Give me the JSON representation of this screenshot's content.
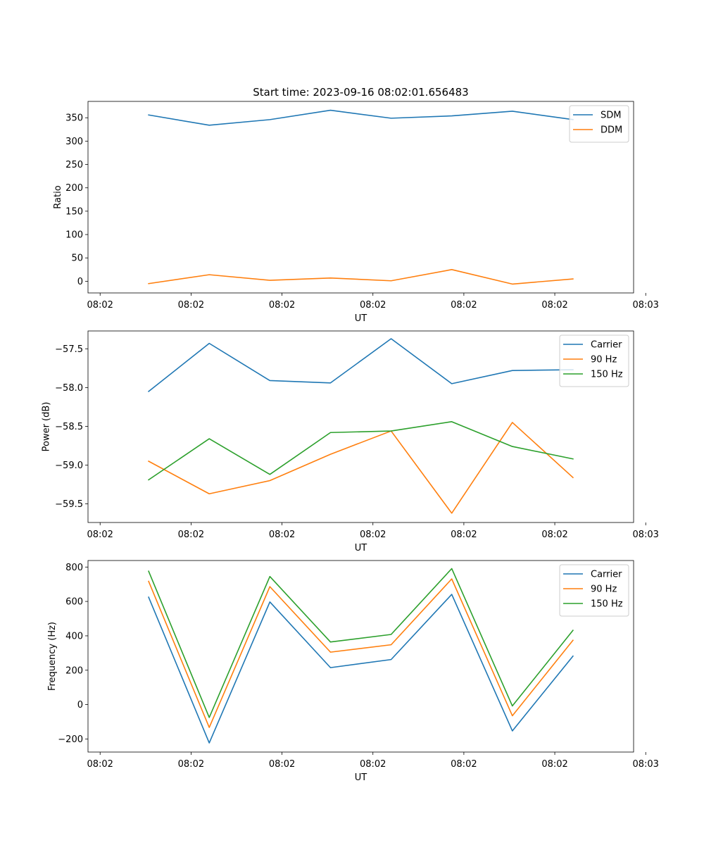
{
  "chart_data": [
    {
      "type": "line",
      "title": "Start time: 2023-09-16 08:02:01.656483",
      "xlabel": "UT",
      "ylabel": "Ratio",
      "x": [
        1,
        2,
        3,
        4,
        5,
        6,
        7,
        8
      ],
      "xlim": [
        0,
        9
      ],
      "xticks": [
        0.2,
        1.7,
        3.2,
        4.7,
        6.2,
        7.7,
        9.2
      ],
      "xtick_labels": [
        "08:02",
        "08:02",
        "08:02",
        "08:02",
        "08:02",
        "08:02",
        "08:03"
      ],
      "ylim": [
        -25,
        385
      ],
      "yticks": [
        0,
        50,
        100,
        150,
        200,
        250,
        300,
        350
      ],
      "ytick_labels": [
        "0",
        "50",
        "100",
        "150",
        "200",
        "250",
        "300",
        "350"
      ],
      "legend_position": "top-right",
      "series": [
        {
          "name": "SDM",
          "color": "#1f77b4",
          "values": [
            356,
            334,
            346,
            366,
            349,
            354,
            364,
            346
          ]
        },
        {
          "name": "DDM",
          "color": "#ff7f0e",
          "values": [
            -5,
            14,
            2,
            7,
            1,
            25,
            -6,
            5
          ]
        }
      ]
    },
    {
      "type": "line",
      "title": "",
      "xlabel": "UT",
      "ylabel": "Power (dB)",
      "x": [
        1,
        2,
        3,
        4,
        5,
        6,
        7,
        8
      ],
      "xlim": [
        0,
        9
      ],
      "xticks": [
        0.2,
        1.7,
        3.2,
        4.7,
        6.2,
        7.7,
        9.2
      ],
      "xtick_labels": [
        "08:02",
        "08:02",
        "08:02",
        "08:02",
        "08:02",
        "08:02",
        "08:03"
      ],
      "ylim": [
        -59.74,
        -57.27
      ],
      "yticks": [
        -59.5,
        -59.0,
        -58.5,
        -58.0,
        -57.5
      ],
      "ytick_labels": [
        "−59.5",
        "−59.0",
        "−58.5",
        "−58.0",
        "−57.5"
      ],
      "legend_position": "top-right",
      "series": [
        {
          "name": "Carrier",
          "color": "#1f77b4",
          "values": [
            -58.05,
            -57.43,
            -57.91,
            -57.94,
            -57.37,
            -57.95,
            -57.78,
            -57.77
          ]
        },
        {
          "name": "90 Hz",
          "color": "#ff7f0e",
          "values": [
            -58.95,
            -59.37,
            -59.2,
            -58.86,
            -58.56,
            -59.62,
            -58.45,
            -59.16
          ]
        },
        {
          "name": "150 Hz",
          "color": "#2ca02c",
          "values": [
            -59.19,
            -58.66,
            -59.12,
            -58.58,
            -58.56,
            -58.44,
            -58.76,
            -58.92
          ]
        }
      ]
    },
    {
      "type": "line",
      "title": "",
      "xlabel": "UT",
      "ylabel": "Frequency (Hz)",
      "x": [
        1,
        2,
        3,
        4,
        5,
        6,
        7,
        8
      ],
      "xlim": [
        0,
        9
      ],
      "xticks": [
        0.2,
        1.7,
        3.2,
        4.7,
        6.2,
        7.7,
        9.2
      ],
      "xtick_labels": [
        "08:02",
        "08:02",
        "08:02",
        "08:02",
        "08:02",
        "08:02",
        "08:03"
      ],
      "ylim": [
        -276,
        838
      ],
      "yticks": [
        -200,
        0,
        200,
        400,
        600,
        800
      ],
      "ytick_labels": [
        "−200",
        "0",
        "200",
        "400",
        "600",
        "800"
      ],
      "legend_position": "top-right",
      "series": [
        {
          "name": "Carrier",
          "color": "#1f77b4",
          "values": [
            625,
            -223,
            597,
            215,
            262,
            641,
            -153,
            282
          ]
        },
        {
          "name": "90 Hz",
          "color": "#ff7f0e",
          "values": [
            717,
            -133,
            686,
            305,
            348,
            731,
            -65,
            374
          ]
        },
        {
          "name": "150 Hz",
          "color": "#2ca02c",
          "values": [
            776,
            -75,
            745,
            364,
            408,
            791,
            -8,
            432
          ]
        }
      ]
    }
  ]
}
